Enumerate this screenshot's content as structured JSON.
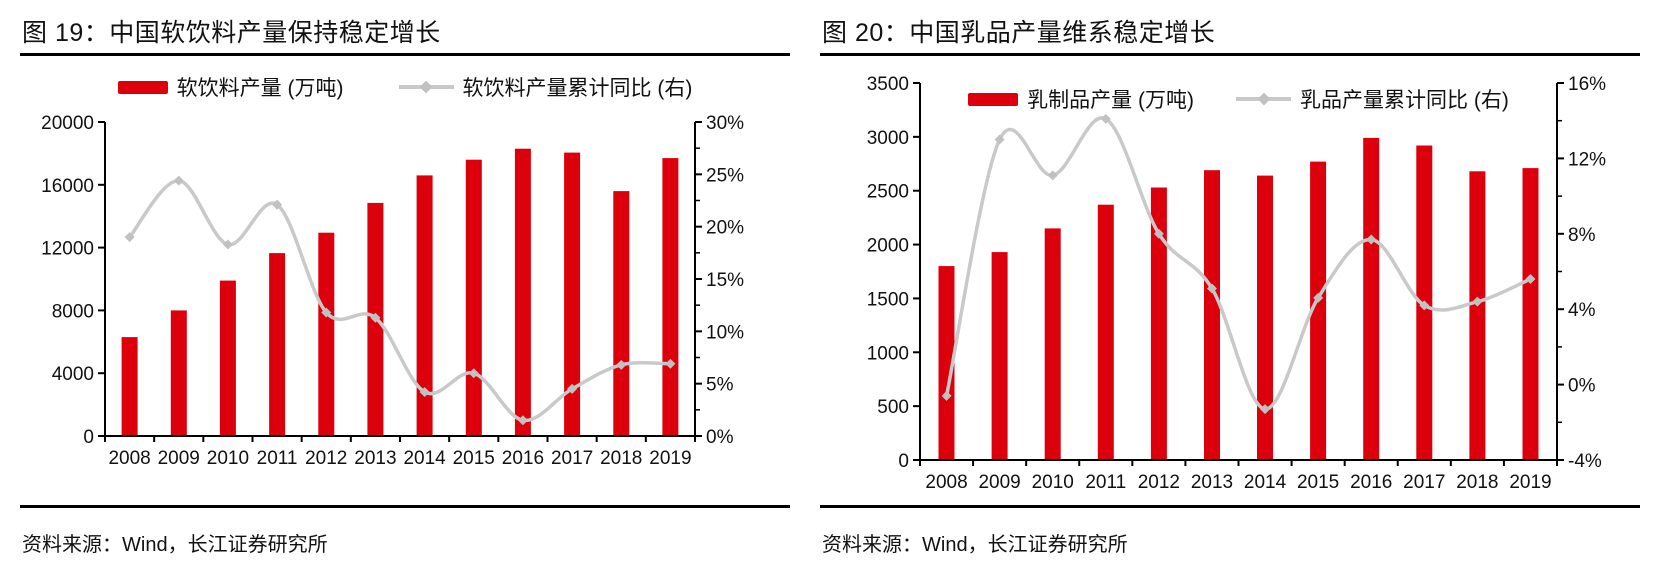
{
  "colors": {
    "bar_red": "#DC000C",
    "line_gray": "#C9C9C9",
    "marker_gray": "#C1C1C1",
    "axis_black": "#000000",
    "text_black": "#111111"
  },
  "chart_data": [
    {
      "type": "bar+line combo",
      "title": "图 19：中国软饮料产量保持稳定增长",
      "source": "资料来源：Wind，长江证券研究所",
      "categories": [
        "2008",
        "2009",
        "2010",
        "2011",
        "2012",
        "2013",
        "2014",
        "2015",
        "2016",
        "2017",
        "2018",
        "2019"
      ],
      "bar_series": {
        "name": "软饮料产量 (万吨)",
        "axis": "left",
        "color": "#DC000C",
        "values": [
          6300,
          8000,
          9900,
          11650,
          12950,
          14850,
          16600,
          17600,
          18300,
          18050,
          15600,
          17700
        ]
      },
      "line_series": {
        "name": "软饮料产量累计同比 (右)",
        "axis": "right",
        "color": "#C9C9C9",
        "marker_color": "#C1C1C1",
        "values_pct": [
          19.0,
          24.4,
          18.3,
          22.1,
          11.8,
          11.3,
          4.2,
          6.0,
          1.5,
          4.5,
          6.8,
          6.9
        ]
      },
      "left_axis": {
        "min": 0,
        "max": 20000,
        "step": 4000,
        "labels": [
          "0",
          "4000",
          "8000",
          "12000",
          "16000",
          "20000"
        ]
      },
      "right_axis": {
        "min": 0,
        "max": 30,
        "step": 5,
        "minor_step": 2.5,
        "labels": [
          "0%",
          "5%",
          "10%",
          "15%",
          "20%",
          "25%",
          "30%"
        ]
      },
      "legend_position": "above plot",
      "grid": false
    },
    {
      "type": "bar+line combo",
      "title": "图 20：中国乳品产量维系稳定增长",
      "source": "资料来源：Wind，长江证券研究所",
      "categories": [
        "2008",
        "2009",
        "2010",
        "2011",
        "2012",
        "2013",
        "2014",
        "2015",
        "2016",
        "2017",
        "2018",
        "2019"
      ],
      "bar_series": {
        "name": "乳制品产量 (万吨)",
        "axis": "left",
        "color": "#DC000C",
        "values": [
          1800,
          1930,
          2150,
          2370,
          2530,
          2690,
          2640,
          2770,
          2990,
          2920,
          2680,
          2710
        ]
      },
      "line_series": {
        "name": "乳品产量累计同比 (右)",
        "axis": "right",
        "color": "#C9C9C9",
        "marker_color": "#C1C1C1",
        "values_pct": [
          -0.6,
          13.0,
          11.1,
          14.1,
          8.0,
          5.1,
          -1.3,
          4.6,
          7.7,
          4.2,
          4.4,
          5.6
        ]
      },
      "left_axis": {
        "min": 0,
        "max": 3500,
        "step": 500,
        "labels": [
          "0",
          "500",
          "1000",
          "1500",
          "2000",
          "2500",
          "3000",
          "3500"
        ]
      },
      "right_axis": {
        "min": -4,
        "max": 16,
        "step": 4,
        "minor_step": 2,
        "labels": [
          "-4%",
          "0%",
          "4%",
          "8%",
          "12%",
          "16%"
        ]
      },
      "legend_position": "inside plot top",
      "grid": false
    }
  ]
}
